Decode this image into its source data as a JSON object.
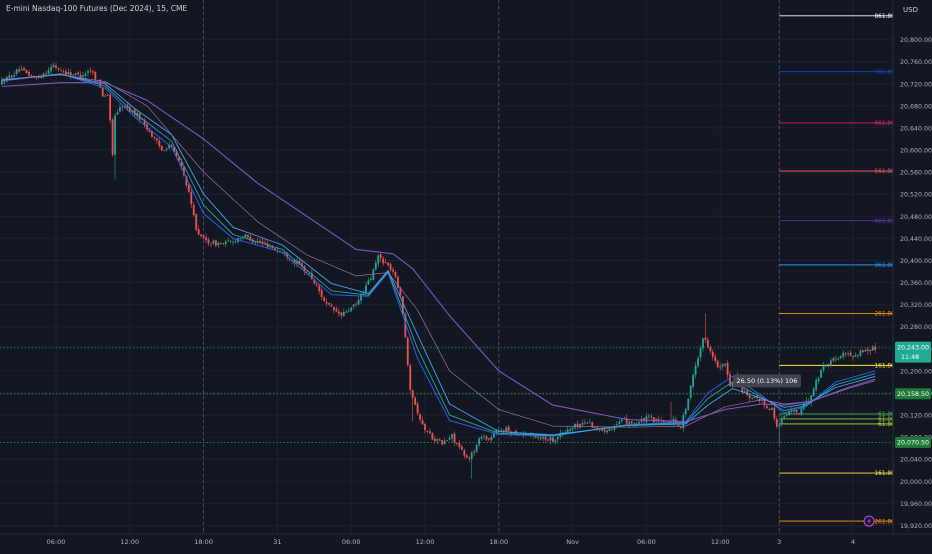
{
  "header": {
    "title": "E-mini Nasdaq-100 Futures (Dec 2024), 15, CME",
    "currency": "USD"
  },
  "chart_data": {
    "type": "candlestick",
    "title": "E-mini Nasdaq-100 Futures (Dec 2024), 15, CME",
    "ylim": [
      19910,
      20890
    ],
    "y_ticks": [
      "20,800.00",
      "20,760.00",
      "20,720.00",
      "20,680.00",
      "20,640.00",
      "20,600.00",
      "20,560.00",
      "20,520.00",
      "20,480.00",
      "20,440.00",
      "20,400.00",
      "20,360.00",
      "20,320.00",
      "20,280.00",
      "20,240.00",
      "20,200.00",
      "20,160.00",
      "20,120.00",
      "20,080.00",
      "20,040.00",
      "20,000.00",
      "19,960.00",
      "19,920.00"
    ],
    "x_ticks": [
      {
        "label": "06:00",
        "x": 0.8
      },
      {
        "label": "12:00",
        "x": 3.8
      },
      {
        "label": "18:00",
        "x": 6.8
      },
      {
        "label": "31",
        "x": 9.8
      },
      {
        "label": "06:00",
        "x": 12.8
      },
      {
        "label": "12:00",
        "x": 15.8
      },
      {
        "label": "18:00",
        "x": 18.8
      },
      {
        "label": "Nov",
        "x": 21.8
      },
      {
        "label": "06:00",
        "x": 24.8
      },
      {
        "label": "12:00",
        "x": 27.8
      },
      {
        "label": "3",
        "x": 30.2
      },
      {
        "label": "4",
        "x": 33.2
      }
    ],
    "x_range": [
      -1.4,
      35.6
    ],
    "session_breaks_x": [
      6.8,
      18.8,
      30.2
    ],
    "price_path": [
      [
        -1.4,
        20720
      ],
      [
        -0.6,
        20745
      ],
      [
        0.1,
        20730
      ],
      [
        0.8,
        20752
      ],
      [
        1.3,
        20740
      ],
      [
        1.9,
        20735
      ],
      [
        2.3,
        20745
      ],
      [
        2.6,
        20725
      ],
      [
        2.8,
        20700
      ],
      [
        3.0,
        20700
      ],
      [
        3.1,
        20650
      ],
      [
        3.2,
        20590
      ],
      [
        3.3,
        20665
      ],
      [
        3.6,
        20680
      ],
      [
        3.9,
        20672
      ],
      [
        4.3,
        20660
      ],
      [
        4.6,
        20640
      ],
      [
        4.9,
        20620
      ],
      [
        5.2,
        20600
      ],
      [
        5.5,
        20610
      ],
      [
        5.9,
        20580
      ],
      [
        6.2,
        20540
      ],
      [
        6.4,
        20500
      ],
      [
        6.6,
        20460
      ],
      [
        6.8,
        20440
      ],
      [
        7.2,
        20432
      ],
      [
        7.6,
        20430
      ],
      [
        8.0,
        20433
      ],
      [
        8.5,
        20445
      ],
      [
        8.9,
        20437
      ],
      [
        9.5,
        20428
      ],
      [
        10.2,
        20412
      ],
      [
        10.7,
        20395
      ],
      [
        11.2,
        20375
      ],
      [
        11.6,
        20345
      ],
      [
        11.9,
        20320
      ],
      [
        12.2,
        20310
      ],
      [
        12.5,
        20300
      ],
      [
        12.8,
        20310
      ],
      [
        13.1,
        20320
      ],
      [
        13.4,
        20345
      ],
      [
        13.7,
        20368
      ],
      [
        14.0,
        20408
      ],
      [
        14.3,
        20395
      ],
      [
        14.6,
        20380
      ],
      [
        14.9,
        20340
      ],
      [
        15.1,
        20260
      ],
      [
        15.3,
        20170
      ],
      [
        15.5,
        20140
      ],
      [
        15.8,
        20100
      ],
      [
        16.2,
        20080
      ],
      [
        16.6,
        20068
      ],
      [
        17.0,
        20082
      ],
      [
        17.3,
        20060
      ],
      [
        17.6,
        20040
      ],
      [
        17.9,
        20055
      ],
      [
        18.2,
        20085
      ],
      [
        18.5,
        20075
      ],
      [
        18.8,
        20090
      ],
      [
        19.1,
        20094
      ],
      [
        19.6,
        20088
      ],
      [
        20.1,
        20085
      ],
      [
        20.6,
        20080
      ],
      [
        21.1,
        20076
      ],
      [
        21.5,
        20088
      ],
      [
        22.0,
        20100
      ],
      [
        22.5,
        20108
      ],
      [
        23.0,
        20092
      ],
      [
        23.5,
        20098
      ],
      [
        24.0,
        20110
      ],
      [
        24.5,
        20105
      ],
      [
        25.0,
        20115
      ],
      [
        25.5,
        20106
      ],
      [
        26.0,
        20110
      ],
      [
        26.3,
        20100
      ],
      [
        26.6,
        20150
      ],
      [
        26.9,
        20210
      ],
      [
        27.2,
        20260
      ],
      [
        27.5,
        20240
      ],
      [
        27.8,
        20205
      ],
      [
        28.1,
        20210
      ],
      [
        28.3,
        20175
      ],
      [
        28.5,
        20190
      ],
      [
        28.8,
        20165
      ],
      [
        29.1,
        20148
      ],
      [
        29.4,
        20150
      ],
      [
        29.7,
        20140
      ],
      [
        30.0,
        20130
      ],
      [
        30.2,
        20100
      ],
      [
        30.5,
        20118
      ],
      [
        30.8,
        20128
      ],
      [
        31.1,
        20125
      ],
      [
        31.5,
        20148
      ],
      [
        31.8,
        20180
      ],
      [
        32.1,
        20210
      ],
      [
        32.5,
        20220
      ],
      [
        32.9,
        20230
      ],
      [
        33.3,
        20228
      ],
      [
        33.7,
        20236
      ],
      [
        34.1,
        20240
      ]
    ],
    "ma_lines": [
      {
        "color": "#2962ff",
        "width": 0.9,
        "points": [
          [
            -1.4,
            20725
          ],
          [
            1.0,
            20738
          ],
          [
            2.8,
            20712
          ],
          [
            4.0,
            20660
          ],
          [
            5.5,
            20605
          ],
          [
            6.8,
            20485
          ],
          [
            8.0,
            20440
          ],
          [
            10.0,
            20415
          ],
          [
            12.0,
            20338
          ],
          [
            13.5,
            20335
          ],
          [
            14.3,
            20378
          ],
          [
            15.5,
            20222
          ],
          [
            16.8,
            20110
          ],
          [
            18.8,
            20085
          ],
          [
            21.0,
            20082
          ],
          [
            24.0,
            20102
          ],
          [
            26.4,
            20108
          ],
          [
            27.3,
            20160
          ],
          [
            28.3,
            20190
          ],
          [
            29.5,
            20155
          ],
          [
            30.4,
            20124
          ],
          [
            31.3,
            20136
          ],
          [
            32.5,
            20180
          ],
          [
            34.1,
            20200
          ]
        ]
      },
      {
        "color": "#26a69a",
        "width": 0.9,
        "points": [
          [
            -1.4,
            20726
          ],
          [
            1.0,
            20738
          ],
          [
            2.8,
            20716
          ],
          [
            4.0,
            20667
          ],
          [
            5.5,
            20616
          ],
          [
            6.8,
            20500
          ],
          [
            8.0,
            20447
          ],
          [
            10.0,
            20420
          ],
          [
            12.0,
            20345
          ],
          [
            13.5,
            20337
          ],
          [
            14.3,
            20380
          ],
          [
            15.5,
            20240
          ],
          [
            16.8,
            20120
          ],
          [
            18.8,
            20087
          ],
          [
            21.0,
            20083
          ],
          [
            24.0,
            20102
          ],
          [
            26.4,
            20106
          ],
          [
            27.3,
            20150
          ],
          [
            28.3,
            20180
          ],
          [
            29.5,
            20152
          ],
          [
            30.4,
            20128
          ],
          [
            31.3,
            20137
          ],
          [
            32.5,
            20175
          ],
          [
            34.1,
            20195
          ]
        ]
      },
      {
        "color": "#42a5f5",
        "width": 0.9,
        "points": [
          [
            -1.4,
            20727
          ],
          [
            1.0,
            20737
          ],
          [
            2.8,
            20720
          ],
          [
            4.0,
            20675
          ],
          [
            5.5,
            20628
          ],
          [
            6.8,
            20520
          ],
          [
            8.0,
            20460
          ],
          [
            10.0,
            20428
          ],
          [
            12.0,
            20358
          ],
          [
            13.5,
            20340
          ],
          [
            14.3,
            20382
          ],
          [
            15.5,
            20265
          ],
          [
            16.8,
            20140
          ],
          [
            18.8,
            20090
          ],
          [
            21.0,
            20084
          ],
          [
            24.0,
            20101
          ],
          [
            26.4,
            20104
          ],
          [
            27.3,
            20138
          ],
          [
            28.3,
            20168
          ],
          [
            29.5,
            20150
          ],
          [
            30.4,
            20134
          ],
          [
            31.3,
            20140
          ],
          [
            32.5,
            20170
          ],
          [
            34.1,
            20190
          ]
        ]
      },
      {
        "color": "#9c6fa8",
        "width": 0.7,
        "points": [
          [
            -1.4,
            20728
          ],
          [
            1.0,
            20736
          ],
          [
            2.8,
            20724
          ],
          [
            4.5,
            20680
          ],
          [
            6.8,
            20560
          ],
          [
            9.0,
            20470
          ],
          [
            11.0,
            20410
          ],
          [
            13.0,
            20372
          ],
          [
            14.3,
            20378
          ],
          [
            15.5,
            20310
          ],
          [
            16.8,
            20200
          ],
          [
            18.8,
            20130
          ],
          [
            21.0,
            20100
          ],
          [
            24.0,
            20098
          ],
          [
            26.4,
            20100
          ],
          [
            28.0,
            20135
          ],
          [
            29.5,
            20148
          ],
          [
            30.4,
            20140
          ],
          [
            31.5,
            20145
          ],
          [
            33.0,
            20168
          ],
          [
            34.1,
            20182
          ]
        ]
      },
      {
        "color": "#7e57c2",
        "width": 1.1,
        "points": [
          [
            -1.4,
            20715
          ],
          [
            1.0,
            20722
          ],
          [
            2.8,
            20722
          ],
          [
            4.5,
            20690
          ],
          [
            6.8,
            20620
          ],
          [
            9.0,
            20540
          ],
          [
            11.0,
            20480
          ],
          [
            13.0,
            20420
          ],
          [
            14.5,
            20412
          ],
          [
            15.3,
            20385
          ],
          [
            16.8,
            20300
          ],
          [
            18.8,
            20200
          ],
          [
            21.0,
            20138
          ],
          [
            24.0,
            20112
          ],
          [
            26.4,
            20108
          ],
          [
            28.0,
            20130
          ],
          [
            29.5,
            20140
          ],
          [
            30.4,
            20138
          ],
          [
            31.5,
            20145
          ],
          [
            33.0,
            20170
          ],
          [
            34.1,
            20185
          ]
        ]
      }
    ],
    "fib_upper": [
      {
        "label": "861.80%",
        "value": 20843,
        "color": "#ffffff"
      },
      {
        "label": "761.80%",
        "value": 20742,
        "color": "#1e40c8"
      },
      {
        "label": "661.80%",
        "value": 20649,
        "color": "#e91e63"
      },
      {
        "label": "561.80%",
        "value": 20562,
        "color": "#ef5350"
      },
      {
        "label": "461.80%",
        "value": 20472,
        "color": "#5e35b1"
      },
      {
        "label": "361.80%",
        "value": 20392,
        "color": "#2196f3"
      },
      {
        "label": "261.80%",
        "value": 20304,
        "color": "#ff9800"
      },
      {
        "label": "161.80%",
        "value": 20210,
        "color": "#ffeb3b"
      },
      {
        "label": "61.80%",
        "value": 20122,
        "color": "#4caf50"
      },
      {
        "label": "61.80%",
        "value": 20113,
        "color": "#8bc34a"
      },
      {
        "label": "61.80%",
        "value": 20104,
        "color": "#cddc39"
      }
    ],
    "fib_lower": [
      {
        "label": "161.80%",
        "value": 20015,
        "color": "#ffeb3b"
      },
      {
        "label": "261.80%",
        "value": 19928,
        "color": "#ff9800"
      }
    ],
    "horizontal_lines": [
      {
        "value": 20158.5,
        "label": "20,158.50",
        "color": "#4caf50",
        "style": "dotted"
      },
      {
        "value": 20070.5,
        "label": "20,070.50",
        "color": "#4caf50",
        "style": "dotted"
      },
      {
        "value": 20243.0,
        "label": "20,243.00",
        "color": "#22ab94",
        "style": "dotted"
      }
    ],
    "last_price": {
      "value": 20243.0,
      "label": "20,243.00",
      "countdown": "11:48",
      "color": "#22ab94"
    },
    "measure_box": {
      "text": "26.50 (0.13%) 106",
      "x": 29.7,
      "value": 20182
    },
    "lightning_icon": {
      "x": 33.85,
      "value": 19928,
      "color": "#e040fb"
    },
    "colors": {
      "up": "#26a69a",
      "down": "#ef5350",
      "background": "#131722",
      "grid": "#1e222d",
      "axis_text": "#b2b5be"
    }
  }
}
